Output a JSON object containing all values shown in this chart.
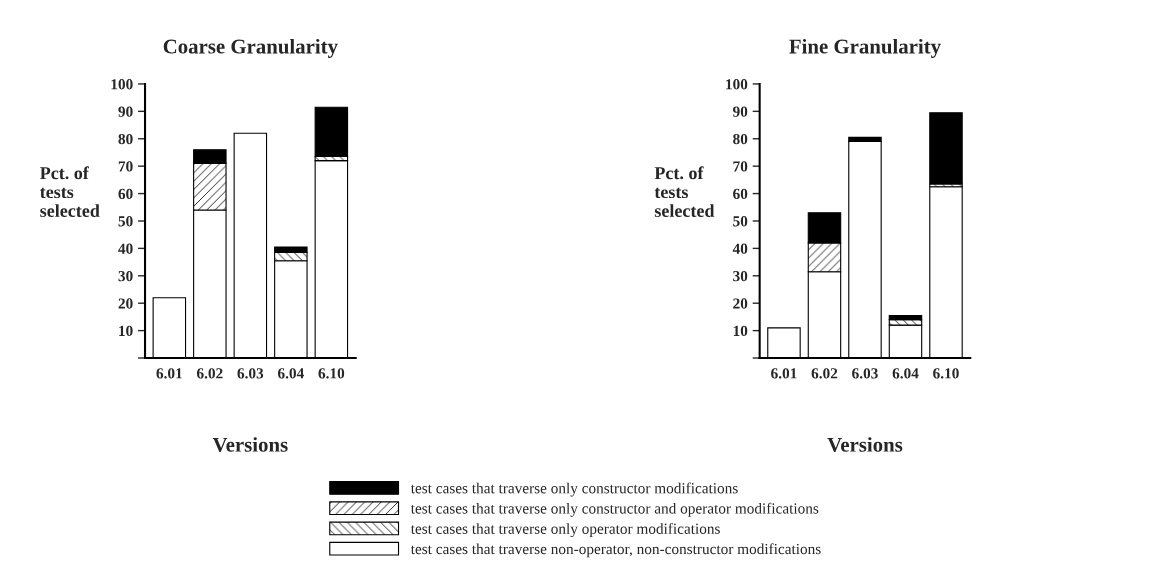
{
  "chart_data": [
    {
      "type": "bar",
      "title": "Coarse Granularity",
      "xlabel": "Versions",
      "ylabel": "Pct. of\ntests\nselected",
      "categories": [
        "6.01",
        "6.02",
        "6.03",
        "6.04",
        "6.10"
      ],
      "stacked": true,
      "ylim": [
        0,
        100
      ],
      "yticks": [
        {
          "value": 0,
          "label": null
        },
        10,
        20,
        30,
        40,
        50,
        60,
        70,
        80,
        90,
        100
      ],
      "grid": false,
      "legend": "bottom",
      "series": [
        {
          "name": "test cases that traverse non-operator, non-constructor modifications",
          "color": "#ffffff",
          "values": [
            22,
            54,
            82,
            35.5,
            72
          ]
        },
        {
          "name": "test cases that traverse only operator modifications",
          "color": "#000000",
          "values": [
            null,
            null,
            null,
            3,
            1.5
          ]
        },
        {
          "name": "test cases that traverse only constructor and operator modifications",
          "color": "#000000",
          "values": [
            null,
            17,
            null,
            null,
            null
          ]
        },
        {
          "name": "test cases that traverse only constructor modifications",
          "color": "#000000",
          "values": [
            null,
            5,
            null,
            2,
            18
          ]
        }
      ]
    },
    {
      "type": "bar",
      "title": "Fine Granularity",
      "xlabel": "Versions",
      "ylabel": "Pct. of\ntests\nselected",
      "categories": [
        "6.01",
        "6.02",
        "6.03",
        "6.04",
        "6.10"
      ],
      "stacked": true,
      "ylim": [
        0,
        100
      ],
      "yticks": [
        {
          "value": 0,
          "label": null
        },
        10,
        20,
        30,
        40,
        50,
        60,
        70,
        80,
        90,
        100
      ],
      "grid": false,
      "series": [
        {
          "color": "#ffffff",
          "values": [
            11,
            31.5,
            79,
            12,
            62.5
          ]
        },
        {
          "color": "#000000",
          "values": [
            null,
            null,
            null,
            2,
            1
          ]
        },
        {
          "color": "#000000",
          "values": [
            null,
            10.5,
            null,
            null,
            null
          ]
        },
        {
          "color": "#000000",
          "values": [
            null,
            11,
            1.5,
            1.5,
            26
          ]
        }
      ]
    }
  ]
}
